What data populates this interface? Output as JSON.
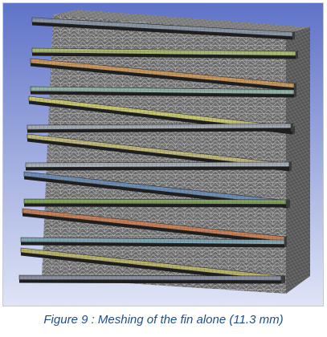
{
  "figure": {
    "caption": "Figure 9 : Meshing of the fin alone (11.3 mm)",
    "colors": {
      "background_top": "#5f73c8",
      "background_bottom": "#dfe4f6",
      "mesh_base": "#676767",
      "mesh_line": "#cfcfcf",
      "caption": "#1f4e8c"
    },
    "fin_colors": [
      "#8a96a8",
      "#a7b870",
      "#c9975c",
      "#8fb3a6",
      "#c7c56e",
      "#a1a8b0",
      "#c0b87a",
      "#a8b0b8",
      "#6d8db5",
      "#7fa35a",
      "#c77f55",
      "#7fa7b5",
      "#b9b36a",
      "#8a8fa0"
    ]
  }
}
